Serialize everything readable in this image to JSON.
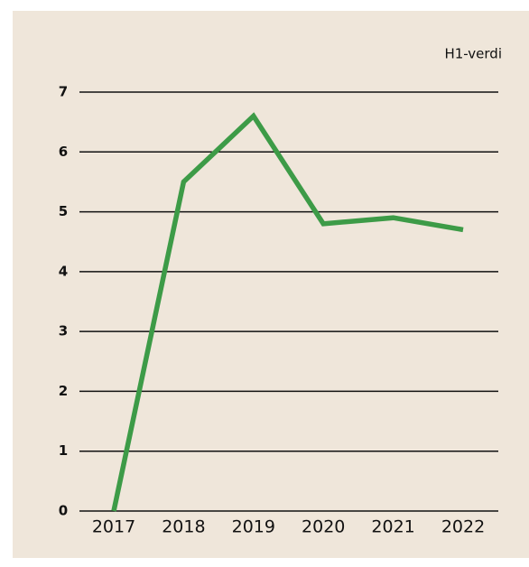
{
  "chart_data": {
    "type": "line",
    "unit_label": "H1-verdi",
    "categories": [
      "2017",
      "2018",
      "2019",
      "2020",
      "2021",
      "2022"
    ],
    "series": [
      {
        "color": "#3d9b47",
        "values": [
          0,
          5.5,
          6.6,
          4.8,
          4.9,
          4.7
        ]
      }
    ],
    "ylim": [
      0,
      7
    ],
    "yticks": [
      0,
      1,
      2,
      3,
      4,
      5,
      6,
      7
    ],
    "grid": true
  }
}
